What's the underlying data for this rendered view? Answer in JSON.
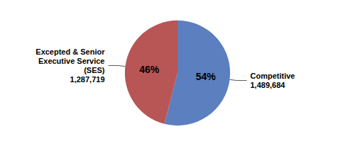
{
  "chart_data": {
    "type": "pie",
    "categories": [
      "Competitive\n1,489,684",
      "Excepted & Senior\nExecutive Service\n(SES)\n1,287,719"
    ],
    "values": [
      54,
      46
    ],
    "value_labels": [
      "54%",
      "46%"
    ],
    "colors": [
      "#5b7fbf",
      "#b85555"
    ],
    "data_labels": true
  }
}
